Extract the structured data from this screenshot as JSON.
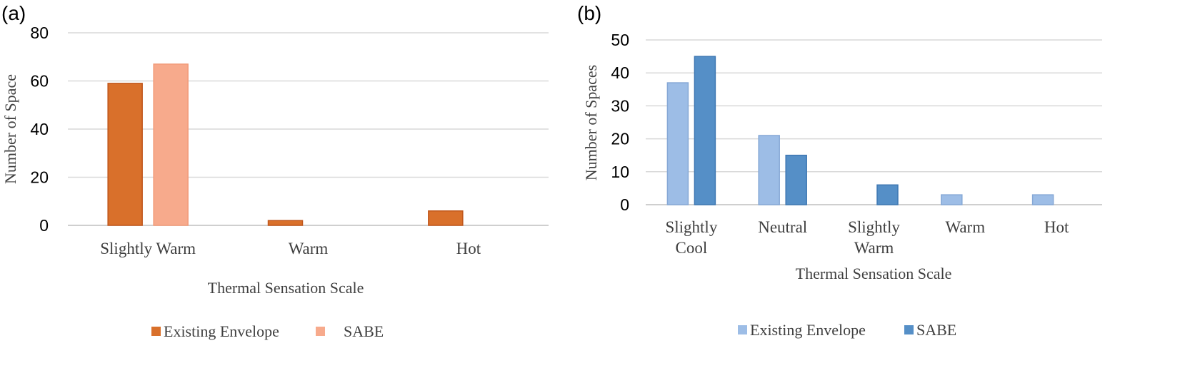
{
  "chart_data": [
    {
      "panel_label": "(a)",
      "type": "bar",
      "categories": [
        [
          "Slightly Warm"
        ],
        [
          "Warm"
        ],
        [
          "Hot"
        ]
      ],
      "series": [
        {
          "name": "Existing Envelope",
          "values": [
            59,
            2,
            6
          ],
          "color": "#d9702b"
        },
        {
          "name": "SABE",
          "values": [
            67,
            0,
            0
          ],
          "color": "#f7aa8c"
        }
      ],
      "xlabel": "Thermal Sensation Scale",
      "ylabel": "Number of Space",
      "ylim": [
        0,
        80
      ],
      "yticks": [
        0,
        20,
        40,
        60,
        80
      ],
      "grid": true,
      "legend": "bottom"
    },
    {
      "panel_label": "(b)",
      "type": "bar",
      "categories": [
        [
          "Slightly",
          "Cool"
        ],
        [
          "Neutral"
        ],
        [
          "Slightly",
          "Warm"
        ],
        [
          "Warm"
        ],
        [
          "Hot"
        ]
      ],
      "series": [
        {
          "name": "Existing Envelope",
          "values": [
            37,
            21,
            0,
            3,
            3
          ],
          "color": "#9dbde6"
        },
        {
          "name": "SABE",
          "values": [
            45,
            15,
            6,
            0,
            0
          ],
          "color": "#558fc7"
        }
      ],
      "xlabel": "Thermal Sensation Scale",
      "ylabel": "Number of Spaces",
      "ylim": [
        0,
        50
      ],
      "yticks": [
        0,
        10,
        20,
        30,
        40,
        50
      ],
      "grid": true,
      "legend": "bottom"
    }
  ]
}
